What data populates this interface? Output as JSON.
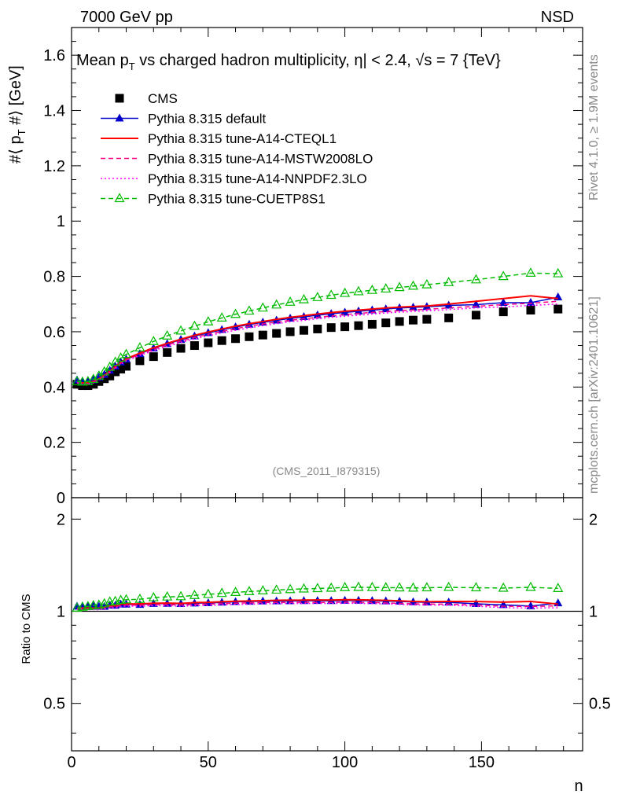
{
  "header": {
    "energy_label": "7000 GeV pp",
    "process_label": "NSD",
    "title": "Mean p_T vs charged hadron multiplicity, |η| < 2.4, √s = 7 {TeV}",
    "title_parts": [
      "Mean p",
      "T",
      " vs charged hadron multiplicity, ",
      "η",
      "| < 2.4, ",
      "√",
      "s = 7 {TeV}"
    ],
    "analysis_id": "(CMS_2011_I879315)",
    "side_rivet": "Rivet 4.1.0, ≥ 1.9M events",
    "side_mcplots": "mcplots.cern.ch [arXiv:2401.10621]"
  },
  "chart_data": [
    {
      "type": "line",
      "panel": "main",
      "ylabel": "#⟨ p_T #⟩ [GeV]",
      "ylabel_parts": [
        "#⟨ p",
        "T",
        " #⟩ [GeV]"
      ],
      "xlabel": "n",
      "xlim": [
        0,
        187
      ],
      "ylim": [
        0,
        1.7
      ],
      "x_ticks": [
        "0",
        "50",
        "100",
        "150"
      ],
      "y_ticks": [
        "0",
        "0.2",
        "0.4",
        "0.6",
        "0.8",
        "1",
        "1.2",
        "1.4",
        "1.6"
      ],
      "legend_position": "top-left",
      "series": [
        {
          "name": "CMS",
          "color": "#000000",
          "style": "marker-square",
          "x": [
            2,
            4,
            6,
            8,
            10,
            12,
            14,
            16,
            18,
            20,
            25,
            30,
            35,
            40,
            45,
            50,
            55,
            60,
            65,
            70,
            75,
            80,
            85,
            90,
            95,
            100,
            105,
            110,
            115,
            120,
            125,
            130,
            138,
            148,
            158,
            168,
            178
          ],
          "y": [
            0.41,
            0.405,
            0.405,
            0.41,
            0.42,
            0.43,
            0.44,
            0.455,
            0.465,
            0.475,
            0.495,
            0.51,
            0.525,
            0.54,
            0.55,
            0.56,
            0.568,
            0.575,
            0.582,
            0.588,
            0.594,
            0.6,
            0.605,
            0.61,
            0.615,
            0.618,
            0.622,
            0.627,
            0.632,
            0.637,
            0.642,
            0.645,
            0.65,
            0.66,
            0.672,
            0.678,
            0.682
          ]
        },
        {
          "name": "Pythia 8.315 default",
          "color": "#0000cc",
          "style": "solid-triangle",
          "x": [
            2,
            4,
            6,
            8,
            10,
            12,
            14,
            16,
            18,
            20,
            25,
            30,
            35,
            40,
            45,
            50,
            55,
            60,
            65,
            70,
            75,
            80,
            85,
            90,
            95,
            100,
            105,
            110,
            115,
            120,
            125,
            130,
            138,
            148,
            158,
            168,
            178
          ],
          "y": [
            0.425,
            0.42,
            0.42,
            0.425,
            0.435,
            0.445,
            0.46,
            0.475,
            0.49,
            0.5,
            0.52,
            0.54,
            0.556,
            0.571,
            0.584,
            0.596,
            0.607,
            0.617,
            0.626,
            0.634,
            0.641,
            0.648,
            0.654,
            0.66,
            0.665,
            0.67,
            0.674,
            0.678,
            0.682,
            0.686,
            0.688,
            0.69,
            0.695,
            0.698,
            0.705,
            0.705,
            0.725
          ]
        },
        {
          "name": "Pythia 8.315 tune-A14-CTEQL1",
          "color": "#ff0000",
          "style": "solid",
          "x": [
            2,
            4,
            6,
            8,
            10,
            12,
            14,
            16,
            18,
            20,
            25,
            30,
            35,
            40,
            45,
            50,
            55,
            60,
            65,
            70,
            75,
            80,
            85,
            90,
            95,
            100,
            105,
            110,
            115,
            120,
            125,
            130,
            138,
            148,
            158,
            168,
            178
          ],
          "y": [
            0.42,
            0.415,
            0.415,
            0.42,
            0.43,
            0.443,
            0.458,
            0.474,
            0.49,
            0.502,
            0.523,
            0.542,
            0.558,
            0.573,
            0.587,
            0.599,
            0.61,
            0.62,
            0.629,
            0.637,
            0.645,
            0.652,
            0.658,
            0.664,
            0.669,
            0.674,
            0.678,
            0.682,
            0.686,
            0.689,
            0.691,
            0.693,
            0.7,
            0.71,
            0.72,
            0.73,
            0.72
          ]
        },
        {
          "name": "Pythia 8.315 tune-A14-MSTW2008LO",
          "color": "#ff0080",
          "style": "dashed",
          "x": [
            2,
            4,
            6,
            8,
            10,
            12,
            14,
            16,
            18,
            20,
            25,
            30,
            35,
            40,
            45,
            50,
            55,
            60,
            65,
            70,
            75,
            80,
            85,
            90,
            95,
            100,
            105,
            110,
            115,
            120,
            125,
            130,
            138,
            148,
            158,
            168,
            178
          ],
          "y": [
            0.418,
            0.413,
            0.413,
            0.418,
            0.428,
            0.44,
            0.455,
            0.47,
            0.486,
            0.498,
            0.518,
            0.536,
            0.552,
            0.566,
            0.579,
            0.591,
            0.601,
            0.611,
            0.62,
            0.628,
            0.635,
            0.641,
            0.647,
            0.652,
            0.657,
            0.662,
            0.666,
            0.67,
            0.673,
            0.676,
            0.679,
            0.681,
            0.686,
            0.692,
            0.698,
            0.703,
            0.71
          ]
        },
        {
          "name": "Pythia 8.315 tune-A14-NNPDF2.3LO",
          "color": "#ff00ff",
          "style": "dotted",
          "x": [
            2,
            4,
            6,
            8,
            10,
            12,
            14,
            16,
            18,
            20,
            25,
            30,
            35,
            40,
            45,
            50,
            55,
            60,
            65,
            70,
            75,
            80,
            85,
            90,
            95,
            100,
            105,
            110,
            115,
            120,
            125,
            130,
            138,
            148,
            158,
            168,
            178
          ],
          "y": [
            0.415,
            0.41,
            0.41,
            0.415,
            0.425,
            0.437,
            0.452,
            0.467,
            0.482,
            0.494,
            0.514,
            0.532,
            0.547,
            0.561,
            0.574,
            0.585,
            0.596,
            0.605,
            0.614,
            0.622,
            0.629,
            0.636,
            0.641,
            0.647,
            0.652,
            0.656,
            0.66,
            0.664,
            0.668,
            0.671,
            0.673,
            0.676,
            0.68,
            0.686,
            0.69,
            0.695,
            0.7
          ]
        },
        {
          "name": "Pythia 8.315 tune-CUETP8S1",
          "color": "#00bb00",
          "style": "dashed-open-triangle",
          "x": [
            2,
            4,
            6,
            8,
            10,
            12,
            14,
            16,
            18,
            20,
            25,
            30,
            35,
            40,
            45,
            50,
            55,
            60,
            65,
            70,
            75,
            80,
            85,
            90,
            95,
            100,
            105,
            110,
            115,
            120,
            125,
            130,
            138,
            148,
            158,
            168,
            178
          ],
          "y": [
            0.42,
            0.418,
            0.42,
            0.428,
            0.44,
            0.455,
            0.472,
            0.49,
            0.505,
            0.518,
            0.542,
            0.565,
            0.585,
            0.603,
            0.62,
            0.636,
            0.65,
            0.663,
            0.675,
            0.686,
            0.697,
            0.707,
            0.716,
            0.724,
            0.732,
            0.739,
            0.745,
            0.75,
            0.755,
            0.76,
            0.765,
            0.77,
            0.778,
            0.788,
            0.8,
            0.812,
            0.81
          ]
        }
      ]
    },
    {
      "type": "line",
      "panel": "ratio",
      "ylabel": "Ratio to CMS",
      "xlabel": "n",
      "xlim": [
        0,
        187
      ],
      "ylim": [
        0.35,
        2.35
      ],
      "y_ticks": [
        "0.5",
        "1",
        "2"
      ],
      "y_tick_values": [
        0.5,
        1,
        2
      ],
      "reference_line": 1
    }
  ]
}
